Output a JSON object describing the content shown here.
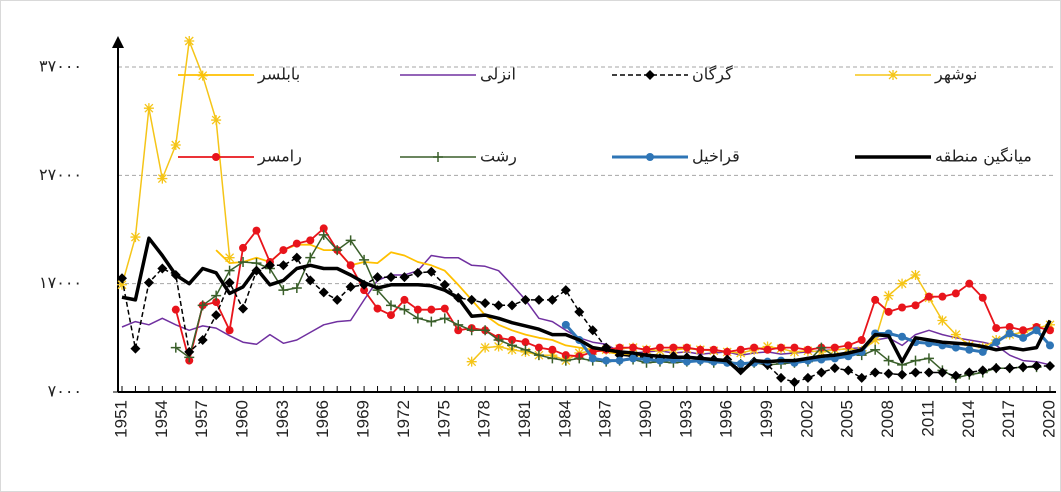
{
  "chart_data": {
    "type": "line",
    "x": [
      1951,
      1952,
      1953,
      1954,
      1955,
      1956,
      1957,
      1958,
      1959,
      1960,
      1961,
      1962,
      1963,
      1964,
      1965,
      1966,
      1967,
      1968,
      1969,
      1970,
      1971,
      1972,
      1973,
      1974,
      1975,
      1976,
      1977,
      1978,
      1979,
      1980,
      1981,
      1982,
      1983,
      1984,
      1985,
      1986,
      1987,
      1988,
      1989,
      1990,
      1991,
      1992,
      1993,
      1994,
      1995,
      1996,
      1997,
      1998,
      1999,
      2000,
      2001,
      2002,
      2003,
      2004,
      2005,
      2006,
      2007,
      2008,
      2009,
      2010,
      2011,
      2012,
      2013,
      2014,
      2015,
      2016,
      2017,
      2018,
      2019,
      2020
    ],
    "xticks": [
      1951,
      1954,
      1957,
      1960,
      1963,
      1966,
      1969,
      1972,
      1975,
      1978,
      1981,
      1984,
      1987,
      1990,
      1993,
      1996,
      1999,
      2002,
      2005,
      2008,
      2011,
      2014,
      2017,
      2020
    ],
    "ylim": [
      7000,
      40000
    ],
    "yticks": [
      {
        "value": 7000,
        "label": "۷۰۰۰"
      },
      {
        "value": 17000,
        "label": "۱۷۰۰۰"
      },
      {
        "value": 27000,
        "label": "۲۷۰۰۰"
      },
      {
        "value": 37000,
        "label": "۳۷۰۰۰"
      }
    ],
    "grid": true,
    "series": [
      {
        "name": "نوشهر",
        "color": "#f5c518",
        "marker": "star",
        "values": [
          16900,
          21300,
          33200,
          26700,
          29800,
          39400,
          36200,
          32100,
          19400,
          null,
          null,
          null,
          null,
          null,
          null,
          null,
          null,
          null,
          null,
          null,
          null,
          null,
          null,
          null,
          null,
          null,
          9800,
          11100,
          11200,
          10900,
          10700,
          10400,
          10400,
          9900,
          10600,
          10800,
          10900,
          11000,
          11100,
          10900,
          10800,
          10900,
          11000,
          10900,
          10800,
          10700,
          10600,
          10900,
          11200,
          11000,
          10700,
          10800,
          10700,
          10900,
          11000,
          10800,
          11800,
          15900,
          17000,
          17800,
          15700,
          13600,
          12300,
          11300,
          11100,
          11800,
          12300,
          12500,
          12900,
          13200
        ]
      },
      {
        "name": "گرگان",
        "color": "#000000",
        "marker": "diamond",
        "dash": "dashed",
        "values": [
          17500,
          11000,
          17100,
          18400,
          17800,
          10700,
          11800,
          14100,
          17100,
          14700,
          18200,
          18700,
          18700,
          19400,
          17300,
          16200,
          15500,
          16700,
          16900,
          17600,
          17600,
          17600,
          18000,
          18100,
          16900,
          15700,
          15500,
          15200,
          15000,
          15000,
          15500,
          15500,
          15500,
          16400,
          14400,
          12700,
          11100,
          10400,
          10300,
          10200,
          10100,
          10300,
          10200,
          10100,
          10000,
          10000,
          9000,
          9800,
          9500,
          8300,
          7900,
          8300,
          8800,
          9200,
          9000,
          8300,
          8800,
          8700,
          8600,
          8800,
          8800,
          8800,
          8500,
          8800,
          9000,
          9200,
          9200,
          9300,
          9400,
          9400
        ]
      },
      {
        "name": "انزلی",
        "color": "#7030a0",
        "values": [
          13000,
          13500,
          13200,
          13800,
          13200,
          12700,
          13100,
          12900,
          12200,
          11600,
          11400,
          12300,
          11500,
          11800,
          12500,
          13200,
          13500,
          13600,
          15500,
          17300,
          17800,
          17800,
          18200,
          19600,
          19400,
          19400,
          18700,
          18600,
          18200,
          16900,
          15500,
          13800,
          13500,
          12700,
          12000,
          11600,
          11400,
          10700,
          10600,
          10700,
          10800,
          10600,
          10700,
          10500,
          10600,
          10700,
          10400,
          10600,
          10700,
          10500,
          10600,
          10700,
          10800,
          10900,
          11000,
          11100,
          11800,
          12000,
          11300,
          12300,
          12700,
          12300,
          12000,
          11800,
          11600,
          11300,
          10400,
          9900,
          9800,
          9500
        ]
      },
      {
        "name": "بابلسر",
        "color": "#ffc000",
        "values": [
          null,
          null,
          null,
          null,
          null,
          null,
          null,
          20100,
          18900,
          19000,
          19400,
          19000,
          20100,
          20600,
          20600,
          20100,
          20100,
          18700,
          19000,
          18900,
          19900,
          19600,
          19000,
          18700,
          18200,
          16900,
          15500,
          14100,
          13200,
          12700,
          12300,
          12000,
          11800,
          11300,
          11100,
          10900,
          10700,
          10500,
          10400,
          10300,
          null,
          null,
          null,
          null,
          null,
          null,
          null,
          null,
          null,
          null,
          null,
          null,
          null,
          null,
          null,
          null,
          null,
          null,
          null,
          null,
          null,
          null,
          null,
          null,
          null,
          null,
          null,
          null,
          null,
          null
        ]
      },
      {
        "name": "میانگین منطقه",
        "color": "#000000",
        "values": [
          15750,
          15500,
          21200,
          19600,
          17800,
          17000,
          18400,
          18000,
          16100,
          16700,
          18400,
          16900,
          17300,
          18400,
          18700,
          18400,
          18400,
          17800,
          17100,
          16600,
          16900,
          16900,
          16900,
          16800,
          16400,
          15700,
          14000,
          14100,
          13800,
          13400,
          13100,
          12800,
          12300,
          12300,
          11800,
          11100,
          10900,
          10700,
          10600,
          10400,
          10300,
          10200,
          10200,
          10100,
          10000,
          9900,
          8800,
          9900,
          9800,
          9900,
          9900,
          10100,
          10300,
          10400,
          10600,
          10900,
          12300,
          12200,
          9800,
          12000,
          11800,
          11600,
          11500,
          11400,
          11200,
          10900,
          11100,
          10900,
          11100,
          13600
        ]
      },
      {
        "name": "قراخیل",
        "color": "#2e75b6",
        "marker": "circle",
        "values": [
          null,
          null,
          null,
          null,
          null,
          null,
          null,
          null,
          null,
          null,
          null,
          null,
          null,
          null,
          null,
          null,
          null,
          null,
          null,
          null,
          null,
          null,
          null,
          null,
          null,
          null,
          null,
          null,
          null,
          null,
          null,
          null,
          null,
          13200,
          11800,
          10100,
          9900,
          9900,
          10100,
          10000,
          9900,
          10000,
          9800,
          9900,
          9800,
          9700,
          9600,
          9700,
          9800,
          9900,
          9700,
          9900,
          10000,
          10100,
          10300,
          10700,
          12400,
          12400,
          12100,
          11600,
          11500,
          11300,
          11100,
          10900,
          10700,
          11600,
          12400,
          12000,
          12700,
          11300
        ]
      },
      {
        "name": "رشت",
        "color": "#3a5f2a",
        "marker": "plus",
        "values": [
          null,
          null,
          null,
          null,
          11100,
          10200,
          15000,
          15900,
          18200,
          19000,
          18900,
          18400,
          16400,
          16600,
          19400,
          21500,
          20100,
          21000,
          19200,
          16400,
          15000,
          14600,
          13800,
          13500,
          13800,
          13200,
          12700,
          12700,
          11800,
          11300,
          10900,
          10400,
          10100,
          9900,
          10100,
          9900,
          9800,
          9900,
          10000,
          9700,
          9800,
          9700,
          9800,
          9900,
          9700,
          9800,
          9600,
          9700,
          9500,
          9600,
          9700,
          9800,
          11100,
          10300,
          10500,
          10400,
          10900,
          9900,
          9500,
          9900,
          10100,
          9000,
          8300,
          8600,
          8800,
          9200,
          9200,
          9300,
          9300,
          null
        ]
      },
      {
        "name": "رامسر",
        "color": "#e8141b",
        "marker": "circle",
        "values": [
          null,
          null,
          null,
          null,
          14600,
          9900,
          15000,
          15300,
          12700,
          20300,
          21900,
          19000,
          20100,
          20700,
          21000,
          22100,
          20100,
          18700,
          16400,
          14700,
          14100,
          15500,
          14600,
          14600,
          14700,
          12700,
          12900,
          12700,
          12000,
          11800,
          11600,
          11100,
          10900,
          10400,
          10300,
          10700,
          10900,
          11100,
          11100,
          10900,
          11100,
          11100,
          11100,
          10900,
          10900,
          10700,
          10900,
          11100,
          10900,
          11100,
          11100,
          10900,
          11100,
          11100,
          11300,
          11800,
          15500,
          14400,
          14800,
          15000,
          15800,
          15800,
          16100,
          17000,
          15700,
          12900,
          13000,
          12700,
          13000,
          12700
        ]
      }
    ]
  }
}
